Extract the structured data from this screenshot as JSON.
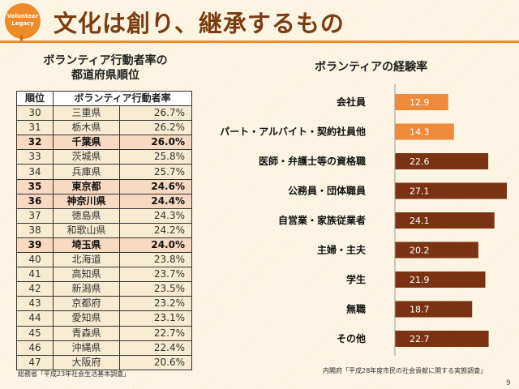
{
  "logo": {
    "line1": "Volunteer",
    "line2": "Legacy"
  },
  "title": "文化は創り、継承するもの",
  "table": {
    "title_line1": "ボランティア行動者率の",
    "title_line2": "都道府県順位",
    "headers": [
      "順位",
      "ボランティア行動者率"
    ],
    "rows": [
      {
        "rank": "30",
        "pref": "三重県",
        "rate": "26.7%",
        "highlight": false
      },
      {
        "rank": "31",
        "pref": "栃木県",
        "rate": "26.2%",
        "highlight": false
      },
      {
        "rank": "32",
        "pref": "千葉県",
        "rate": "26.0%",
        "highlight": true
      },
      {
        "rank": "33",
        "pref": "茨城県",
        "rate": "25.8%",
        "highlight": false
      },
      {
        "rank": "34",
        "pref": "兵庫県",
        "rate": "25.7%",
        "highlight": false
      },
      {
        "rank": "35",
        "pref": "東京都",
        "rate": "24.6%",
        "highlight": true
      },
      {
        "rank": "36",
        "pref": "神奈川県",
        "rate": "24.4%",
        "highlight": true
      },
      {
        "rank": "37",
        "pref": "徳島県",
        "rate": "24.3%",
        "highlight": false
      },
      {
        "rank": "38",
        "pref": "和歌山県",
        "rate": "24.2%",
        "highlight": false
      },
      {
        "rank": "39",
        "pref": "埼玉県",
        "rate": "24.0%",
        "highlight": true
      },
      {
        "rank": "40",
        "pref": "北海道",
        "rate": "23.8%",
        "highlight": false
      },
      {
        "rank": "41",
        "pref": "高知県",
        "rate": "23.7%",
        "highlight": false
      },
      {
        "rank": "42",
        "pref": "新潟県",
        "rate": "23.5%",
        "highlight": false
      },
      {
        "rank": "43",
        "pref": "京都府",
        "rate": "23.2%",
        "highlight": false
      },
      {
        "rank": "44",
        "pref": "愛知県",
        "rate": "23.1%",
        "highlight": false
      },
      {
        "rank": "45",
        "pref": "青森県",
        "rate": "22.7%",
        "highlight": false
      },
      {
        "rank": "46",
        "pref": "沖縄県",
        "rate": "22.4%",
        "highlight": false
      },
      {
        "rank": "47",
        "pref": "大阪府",
        "rate": "20.6%",
        "highlight": false
      }
    ],
    "source": "総務省「平成23年社会生活基本調査」"
  },
  "chart_data": {
    "type": "bar",
    "orientation": "horizontal",
    "title": "ボランティアの経験率",
    "categories": [
      "会社員",
      "パート・アルバイト・契約社員他",
      "医師・弁護士等の資格職",
      "公務員・団体職員",
      "自営業・家族従業者",
      "主婦・主夫",
      "学生",
      "無職",
      "その他"
    ],
    "values": [
      12.9,
      14.3,
      22.6,
      27.1,
      24.1,
      20.2,
      21.9,
      18.7,
      22.7
    ],
    "data_labels": [
      "12.9",
      "14.3",
      "22.6",
      "27.1",
      "24.1",
      "20.2",
      "21.9",
      "18.7",
      "22.7"
    ],
    "bar_colors": [
      "#ef8a3c",
      "#ef8a3c",
      "#7a3212",
      "#7a3212",
      "#7a3212",
      "#7a3212",
      "#7a3212",
      "#7a3212",
      "#7a3212"
    ],
    "xlim": [
      0,
      27.1
    ],
    "grid": false,
    "source": "内閣府「平成28年度市民の社会貢献に関する実態調査」"
  },
  "page_number": "9"
}
